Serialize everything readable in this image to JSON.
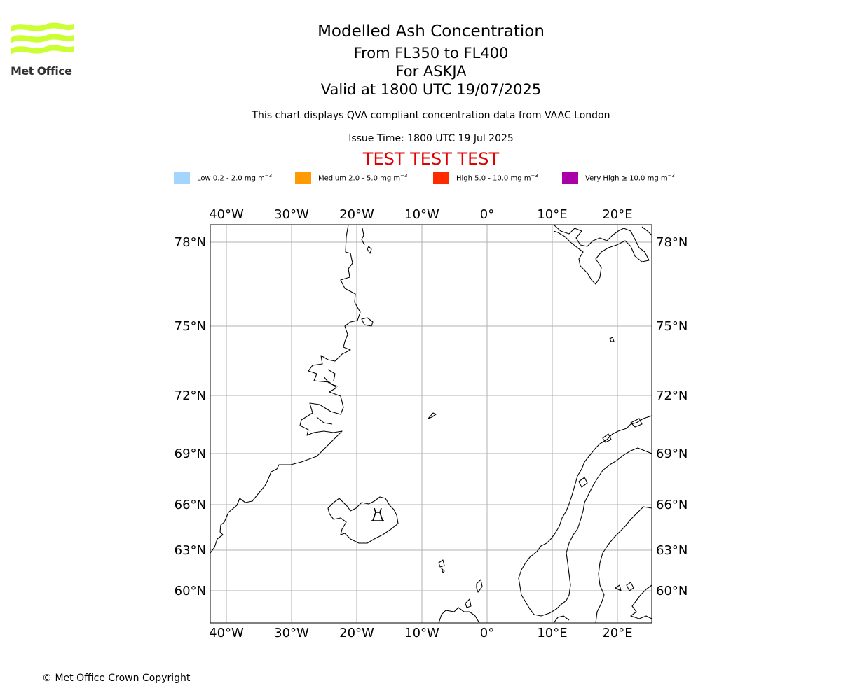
{
  "branding": {
    "logo_text": "Met Office",
    "logo_color": "#ccff33"
  },
  "header": {
    "title": "Modelled Ash Concentration",
    "level_range": "From FL350 to FL400",
    "volcano": "For ASKJA",
    "valid_time": "Valid at 1800 UTC 19/07/2025",
    "description": "This chart displays QVA compliant concentration data from VAAC London",
    "issue_time": "Issue Time: 1800 UTC 19 Jul 2025",
    "test_banner": "TEST TEST TEST",
    "test_color": "#e00000"
  },
  "legend": [
    {
      "label": "Low 0.2 - 2.0 mg m",
      "unit_exp": "−3",
      "color": "#a3d5ff"
    },
    {
      "label": "Medium 2.0 - 5.0 mg m",
      "unit_exp": "−3",
      "color": "#ff9a00"
    },
    {
      "label": "High 5.0 - 10.0 mg m",
      "unit_exp": "−3",
      "color": "#ff2a00"
    },
    {
      "label": "Very High  ≥  10.0 mg m",
      "unit_exp": "−3",
      "color": "#aa00aa"
    }
  ],
  "map": {
    "longitude_labels": [
      "40°W",
      "30°W",
      "20°W",
      "10°W",
      "0°",
      "10°E",
      "20°E"
    ],
    "latitude_labels": [
      "78°N",
      "75°N",
      "72°N",
      "69°N",
      "66°N",
      "63°N",
      "60°N"
    ],
    "volcano_marker": "volcano-icon"
  },
  "footer": {
    "copyright": "© Met Office Crown Copyright"
  }
}
